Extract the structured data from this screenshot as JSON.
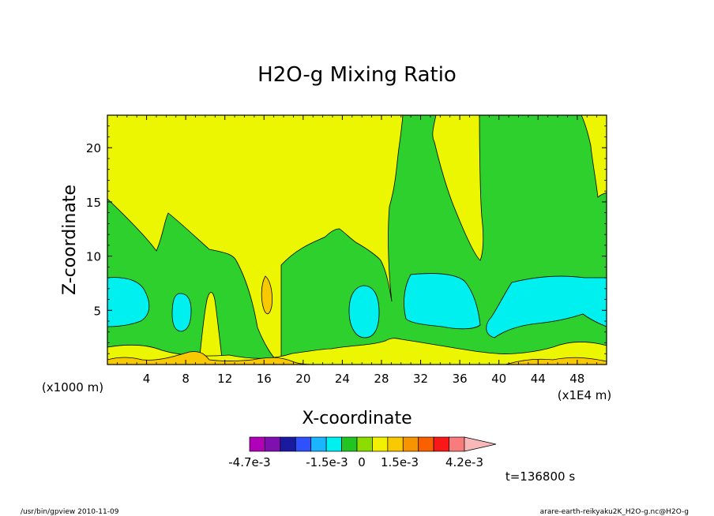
{
  "chart_data": {
    "type": "contour",
    "title": "H2O-g Mixing Ratio",
    "xlabel": "X-coordinate",
    "ylabel": "Z-coordinate",
    "x_unit": "(x1E4 m)",
    "y_unit": "(x1000 m)",
    "xlim": [
      0,
      51
    ],
    "ylim": [
      0,
      23
    ],
    "x_ticks": [
      4,
      8,
      12,
      16,
      20,
      24,
      28,
      32,
      36,
      40,
      44,
      48
    ],
    "y_ticks": [
      5,
      10,
      15,
      20
    ],
    "time_label": "t=136800 s",
    "colorbar": {
      "labels": [
        "-4.7e-3",
        "-1.5e-3",
        "0",
        "1.5e-3",
        "4.2e-3"
      ],
      "colors": [
        "#b000b8",
        "#7f10b0",
        "#1a1aa0",
        "#2f50ff",
        "#1ab4ff",
        "#00f0f0",
        "#22c422",
        "#8cdc00",
        "#f0f000",
        "#f8c800",
        "#f89400",
        "#f86000",
        "#f81818",
        "#f87c7c",
        "#f8b8b8"
      ],
      "region_colors": {
        "outer": "#ecf600",
        "green": "#2ed02e",
        "cyan": "#00f0f0",
        "gold": "#f8c800",
        "orange": "#f8a000"
      }
    }
  },
  "footer": {
    "left": "/usr/bin/gpview   2010-11-09",
    "right": "arare-earth-reikyaku2K_H2O-g.nc@H2O-g"
  }
}
